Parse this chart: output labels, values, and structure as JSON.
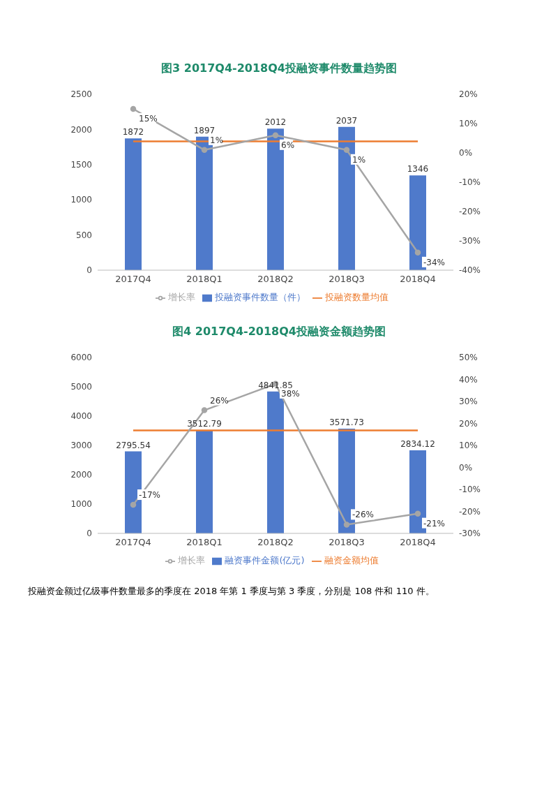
{
  "chart_data": [
    {
      "type": "bar",
      "title": "图3 2017Q4-2018Q4投融资事件数量趋势图",
      "categories": [
        "2017Q4",
        "2018Q1",
        "2018Q2",
        "2018Q3",
        "2018Q4"
      ],
      "series": [
        {
          "name": "投融资事件数量（件）",
          "color": "#4f7acb",
          "values": [
            1872,
            1897,
            2012,
            2037,
            1346
          ],
          "value_labels": [
            "1872",
            "1897",
            "2012",
            "2037",
            "1346"
          ]
        },
        {
          "name": "投融资数量均值",
          "type": "line",
          "color": "#ed7d31",
          "values": [
            1830,
            1830,
            1830,
            1830,
            1830
          ],
          "marker": "none"
        },
        {
          "name": "增长率",
          "type": "line",
          "axis": "y2",
          "color": "#a5a5a5",
          "values": [
            15,
            1,
            6,
            1,
            -34
          ],
          "marker": "circle",
          "value_labels": [
            "15%",
            "1%",
            "6%",
            "1%",
            "-34%"
          ]
        }
      ],
      "ylim": [
        0,
        2500
      ],
      "yticks": [
        0,
        500,
        1000,
        1500,
        2000,
        2500
      ],
      "y2lim": [
        -40,
        20
      ],
      "y2ticks": [
        {
          "value": -40,
          "label": "-40%"
        },
        {
          "value": -30,
          "label": "-30%"
        },
        {
          "value": -20,
          "label": "-20%"
        },
        {
          "value": -10,
          "label": "-10%"
        },
        {
          "value": 0,
          "label": "0%"
        },
        {
          "value": 10,
          "label": "10%"
        },
        {
          "value": 20,
          "label": "20%"
        }
      ],
      "legend": "bottom"
    },
    {
      "type": "bar",
      "title": "图4 2017Q4-2018Q4投融资金额趋势图",
      "categories": [
        "2017Q4",
        "2018Q1",
        "2018Q2",
        "2018Q3",
        "2018Q4"
      ],
      "series": [
        {
          "name": "融资事件金额(亿元)",
          "color": "#4f7acb",
          "values": [
            2795.54,
            3512.79,
            4841.85,
            3571.73,
            2834.12
          ],
          "value_labels": [
            "2795.54",
            "3512.79",
            "4841.85",
            "3571.73",
            "2834.12"
          ]
        },
        {
          "name": "融资金额均值",
          "type": "line",
          "color": "#ed7d31",
          "values": [
            3510,
            3510,
            3510,
            3510,
            3510
          ],
          "marker": "none"
        },
        {
          "name": "增长率",
          "type": "line",
          "axis": "y2",
          "color": "#a5a5a5",
          "values": [
            -17,
            26,
            38,
            -26,
            -21
          ],
          "marker": "circle",
          "value_labels": [
            "-17%",
            "26%",
            "38%",
            "-26%",
            "-21%"
          ]
        }
      ],
      "ylim": [
        0,
        6000
      ],
      "yticks": [
        0,
        1000,
        2000,
        3000,
        4000,
        5000,
        6000
      ],
      "y2lim": [
        -30,
        50
      ],
      "y2ticks": [
        {
          "value": -30,
          "label": "-30%"
        },
        {
          "value": -20,
          "label": "-20%"
        },
        {
          "value": -10,
          "label": "-10%"
        },
        {
          "value": 0,
          "label": "0%"
        },
        {
          "value": 10,
          "label": "10%"
        },
        {
          "value": 20,
          "label": "20%"
        },
        {
          "value": 30,
          "label": "30%"
        },
        {
          "value": 40,
          "label": "40%"
        },
        {
          "value": 50,
          "label": "50%"
        }
      ],
      "legend": "bottom",
      "annotations": [
        "投融资金额过亿级事件数量最多的季度在 2018 年第 1 季度与第 3 季度，分别是 108 件和 110 件。"
      ]
    }
  ]
}
